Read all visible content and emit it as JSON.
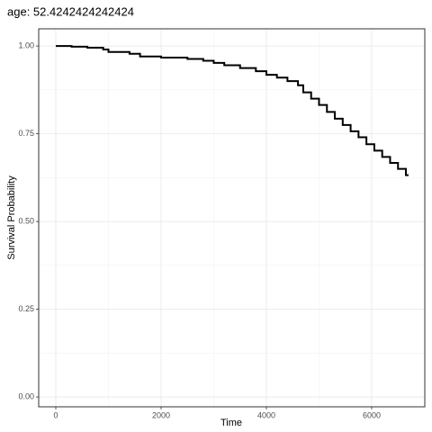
{
  "chart_data": {
    "type": "step",
    "title": "age: 52.4242424242424",
    "x_label": "Time",
    "y_label": "Survival Probability",
    "x": [
      0,
      300,
      600,
      900,
      1000,
      1400,
      1600,
      2000,
      2500,
      2800,
      3000,
      3200,
      3500,
      3800,
      4000,
      4200,
      4400,
      4600,
      4700,
      4850,
      5000,
      5150,
      5300,
      5450,
      5600,
      5750,
      5900,
      6050,
      6200,
      6350,
      6500,
      6650,
      6700
    ],
    "values": [
      1.0,
      0.998,
      0.995,
      0.99,
      0.983,
      0.978,
      0.97,
      0.967,
      0.963,
      0.958,
      0.952,
      0.945,
      0.937,
      0.928,
      0.918,
      0.91,
      0.9,
      0.888,
      0.868,
      0.85,
      0.832,
      0.812,
      0.793,
      0.775,
      0.757,
      0.74,
      0.72,
      0.702,
      0.684,
      0.667,
      0.65,
      0.632,
      0.632
    ],
    "color": "#000000",
    "xlim": [
      -325,
      7009
    ],
    "xticks": [
      0,
      2000,
      4000,
      6000
    ],
    "ylim": [
      -0.028,
      1.049
    ],
    "yticks": [
      {
        "value": 0,
        "label": "0.00"
      },
      {
        "value": 0.25,
        "label": "0.25"
      },
      {
        "value": 0.5,
        "label": "0.50"
      },
      {
        "value": 0.75,
        "label": "0.75"
      },
      {
        "value": 1,
        "label": "1.00"
      }
    ],
    "grid": true
  }
}
